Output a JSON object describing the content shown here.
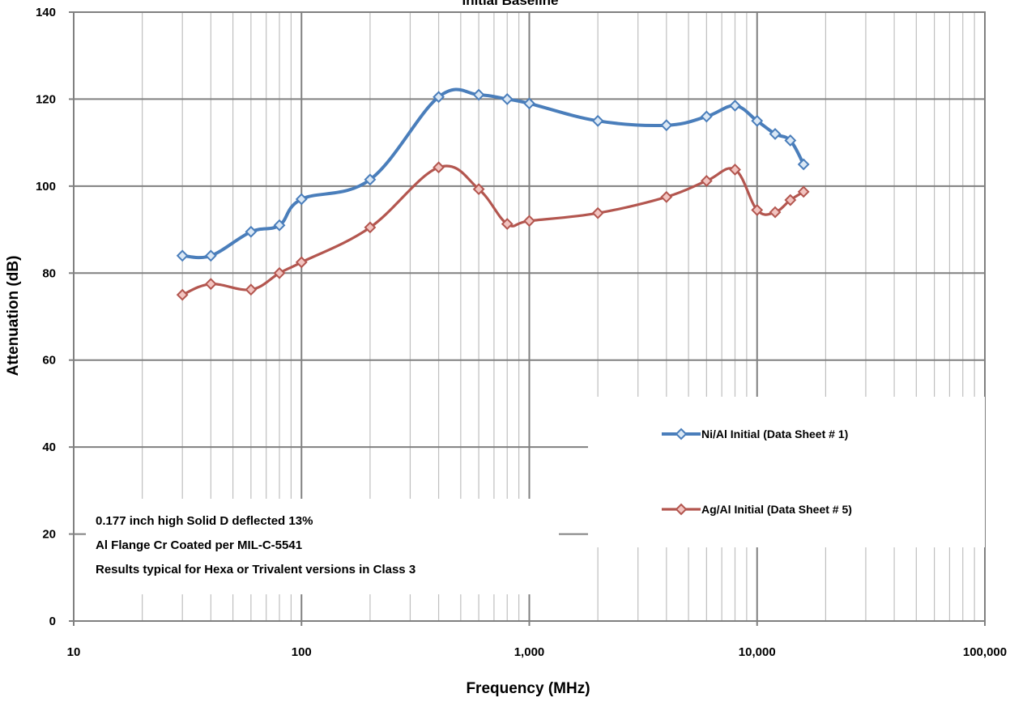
{
  "chart_data": {
    "type": "line",
    "title": "Initial Baseline",
    "xlabel": "Frequency (MHz)",
    "ylabel": "Attenuation (dB)",
    "x_scale": "log",
    "xlim": [
      10,
      100000
    ],
    "ylim": [
      0,
      140
    ],
    "x_ticks": [
      "10",
      "100",
      "1,000",
      "10,000",
      "100,000"
    ],
    "y_ticks": [
      "0",
      "20",
      "40",
      "60",
      "80",
      "100",
      "120",
      "140"
    ],
    "grid": true,
    "legend_position": "right",
    "series": [
      {
        "name": "Ni/Al Initial (Data Sheet # 1)",
        "color": "#4a7ebb",
        "marker_fill": "#dbe8f5",
        "x": [
          30,
          40,
          60,
          80,
          100,
          200,
          400,
          600,
          800,
          1000,
          2000,
          4000,
          6000,
          8000,
          10000,
          12000,
          14000,
          16000
        ],
        "y": [
          84,
          84,
          89.5,
          91,
          97,
          101.5,
          120.5,
          121,
          120,
          119,
          115,
          114,
          116,
          118.5,
          115,
          112,
          110.5,
          105
        ]
      },
      {
        "name": "Ag/Al Initial (Data Sheet # 5)",
        "color": "#b3564f",
        "marker_fill": "#f2c4c0",
        "x": [
          30,
          40,
          60,
          80,
          100,
          200,
          400,
          600,
          800,
          1000,
          2000,
          4000,
          6000,
          8000,
          10000,
          12000,
          14000,
          16000
        ],
        "y": [
          75,
          77.5,
          76.2,
          80,
          82.5,
          90.5,
          104.3,
          99.3,
          91.3,
          92,
          93.8,
          97.5,
          101.2,
          103.8,
          94.5,
          94,
          96.8,
          98.7
        ]
      }
    ],
    "annotation": [
      "0.177 inch high Solid D deflected 13%",
      "Al Flange Cr Coated per MIL-C-5541",
      "Results typical for Hexa or Trivalent versions in Class 3"
    ]
  }
}
